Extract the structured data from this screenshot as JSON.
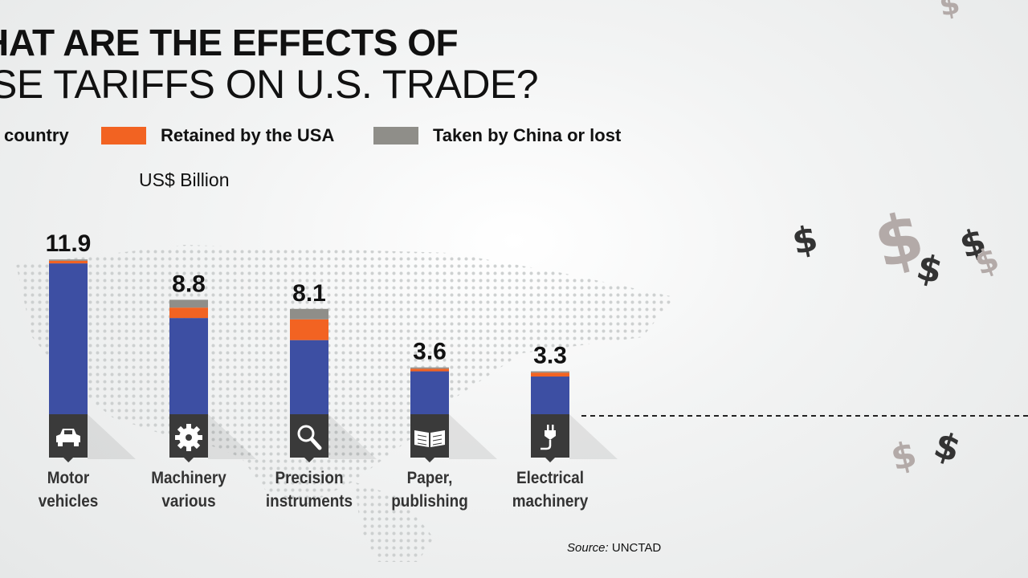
{
  "title": {
    "line1": "HAT ARE THE EFFECTS OF",
    "line2": "SE TARIFFS ON U.S. TRADE?"
  },
  "legend": [
    {
      "label": "country",
      "color": "#3d4fa3"
    },
    {
      "label": "Retained by the USA",
      "color": "#f26322"
    },
    {
      "label": "Taken by China or lost",
      "color": "#8f8e89"
    }
  ],
  "unit_label": "US$ Billion",
  "source": {
    "label": "Source:",
    "value": "UNCTAD"
  },
  "chart_data": {
    "type": "bar",
    "stacked": true,
    "unit": "US$ Billion",
    "categories": [
      [
        "Motor",
        "vehicles"
      ],
      [
        "Machinery",
        "various"
      ],
      [
        "Precision",
        "instruments"
      ],
      [
        "Paper,",
        "publishing"
      ],
      [
        "Electrical",
        "machinery"
      ]
    ],
    "totals": [
      11.9,
      8.8,
      8.1,
      3.6,
      3.3
    ],
    "total_labels": [
      "11.9",
      "8.8",
      "8.1",
      "3.6",
      "3.3"
    ],
    "series": [
      {
        "name": "country",
        "color": "#3d4fa3",
        "values": [
          11.6,
          7.4,
          5.7,
          3.3,
          2.9
        ]
      },
      {
        "name": "Retained by the USA",
        "color": "#f26322",
        "values": [
          0.2,
          0.8,
          1.6,
          0.2,
          0.3
        ]
      },
      {
        "name": "Taken by China or lost",
        "color": "#8f8e89",
        "values": [
          0.1,
          0.6,
          0.8,
          0.1,
          0.1
        ]
      }
    ],
    "icons": [
      "car-icon",
      "gear-icon",
      "magnifier-icon",
      "book-icon",
      "plug-icon"
    ]
  },
  "decor": {
    "dollar_glyph": "$"
  }
}
